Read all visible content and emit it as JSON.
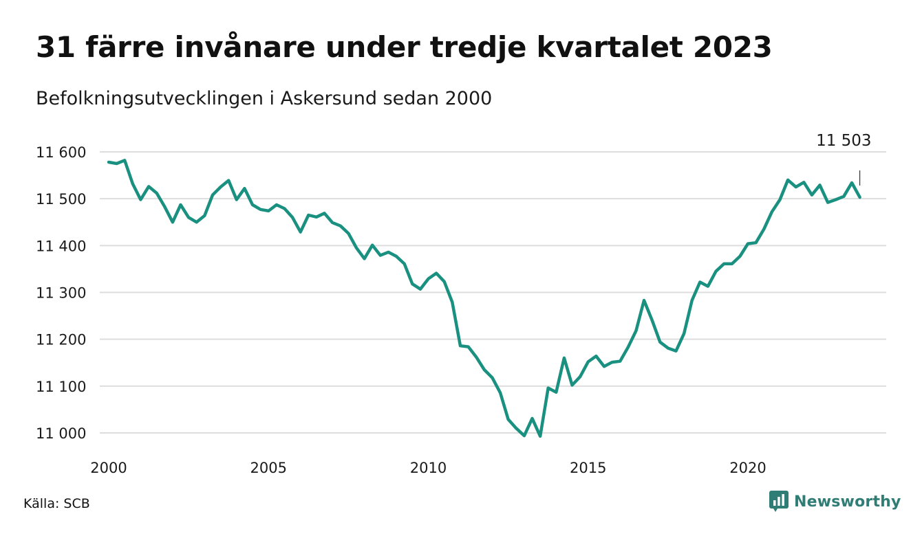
{
  "header": {
    "title": "31 färre invånare under tredje kvartalet 2023",
    "subtitle": "Befolkningsutvecklingen i Askersund sedan 2000"
  },
  "footer": {
    "source": "Källa: SCB",
    "brand": "Newsworthy"
  },
  "colors": {
    "line": "#1a9080",
    "grid": "#dddddd",
    "brand": "#2f7d74"
  },
  "chart_data": {
    "type": "line",
    "title": "31 färre invånare under tredje kvartalet 2023",
    "subtitle": "Befolkningsutvecklingen i Askersund sedan 2000",
    "xlabel": "",
    "ylabel": "",
    "xlim": [
      2000,
      2024.6
    ],
    "ylim": [
      10985,
      11600
    ],
    "y_ticks": [
      11000,
      11100,
      11200,
      11300,
      11400,
      11500,
      11600
    ],
    "y_tick_labels": [
      "11 000",
      "11 100",
      "11 200",
      "11 300",
      "11 400",
      "11 500",
      "11 600"
    ],
    "x_ticks": [
      2000,
      2005,
      2010,
      2015,
      2020
    ],
    "x_tick_labels": [
      "2000",
      "2005",
      "2010",
      "2015",
      "2020"
    ],
    "grid": "horizontal",
    "end_annotation": "11 503",
    "series": [
      {
        "values": [
          [
            2000.0,
            11578
          ],
          [
            2000.25,
            11575
          ],
          [
            2000.5,
            11582
          ],
          [
            2000.75,
            11532
          ],
          [
            2001.0,
            11498
          ],
          [
            2001.25,
            11526
          ],
          [
            2001.5,
            11512
          ],
          [
            2001.75,
            11483
          ],
          [
            2002.0,
            11450
          ],
          [
            2002.25,
            11487
          ],
          [
            2002.5,
            11460
          ],
          [
            2002.75,
            11450
          ],
          [
            2003.0,
            11464
          ],
          [
            2003.25,
            11508
          ],
          [
            2003.5,
            11525
          ],
          [
            2003.75,
            11539
          ],
          [
            2004.0,
            11498
          ],
          [
            2004.25,
            11522
          ],
          [
            2004.5,
            11487
          ],
          [
            2004.75,
            11477
          ],
          [
            2005.0,
            11474
          ],
          [
            2005.25,
            11487
          ],
          [
            2005.5,
            11479
          ],
          [
            2005.75,
            11460
          ],
          [
            2006.0,
            11429
          ],
          [
            2006.25,
            11465
          ],
          [
            2006.5,
            11461
          ],
          [
            2006.75,
            11469
          ],
          [
            2007.0,
            11449
          ],
          [
            2007.25,
            11442
          ],
          [
            2007.5,
            11426
          ],
          [
            2007.75,
            11395
          ],
          [
            2008.0,
            11372
          ],
          [
            2008.25,
            11401
          ],
          [
            2008.5,
            11379
          ],
          [
            2008.75,
            11386
          ],
          [
            2009.0,
            11377
          ],
          [
            2009.25,
            11361
          ],
          [
            2009.5,
            11318
          ],
          [
            2009.75,
            11307
          ],
          [
            2010.0,
            11329
          ],
          [
            2010.25,
            11341
          ],
          [
            2010.5,
            11323
          ],
          [
            2010.75,
            11279
          ],
          [
            2011.0,
            11186
          ],
          [
            2011.25,
            11184
          ],
          [
            2011.5,
            11162
          ],
          [
            2011.75,
            11135
          ],
          [
            2012.0,
            11118
          ],
          [
            2012.25,
            11086
          ],
          [
            2012.5,
            11029
          ],
          [
            2012.75,
            11010
          ],
          [
            2013.0,
            10994
          ],
          [
            2013.25,
            11031
          ],
          [
            2013.5,
            10993
          ],
          [
            2013.75,
            11096
          ],
          [
            2014.0,
            11087
          ],
          [
            2014.25,
            11160
          ],
          [
            2014.5,
            11102
          ],
          [
            2014.75,
            11120
          ],
          [
            2015.0,
            11152
          ],
          [
            2015.25,
            11164
          ],
          [
            2015.5,
            11142
          ],
          [
            2015.75,
            11151
          ],
          [
            2016.0,
            11153
          ],
          [
            2016.25,
            11183
          ],
          [
            2016.5,
            11218
          ],
          [
            2016.75,
            11283
          ],
          [
            2017.0,
            11241
          ],
          [
            2017.25,
            11194
          ],
          [
            2017.5,
            11181
          ],
          [
            2017.75,
            11175
          ],
          [
            2018.0,
            11212
          ],
          [
            2018.25,
            11283
          ],
          [
            2018.5,
            11322
          ],
          [
            2018.75,
            11313
          ],
          [
            2019.0,
            11345
          ],
          [
            2019.25,
            11361
          ],
          [
            2019.5,
            11361
          ],
          [
            2019.75,
            11377
          ],
          [
            2020.0,
            11404
          ],
          [
            2020.25,
            11406
          ],
          [
            2020.5,
            11435
          ],
          [
            2020.75,
            11472
          ],
          [
            2021.0,
            11498
          ],
          [
            2021.25,
            11540
          ],
          [
            2021.5,
            11525
          ],
          [
            2021.75,
            11535
          ],
          [
            2022.0,
            11508
          ],
          [
            2022.25,
            11529
          ],
          [
            2022.5,
            11492
          ],
          [
            2022.75,
            11498
          ],
          [
            2023.0,
            11505
          ],
          [
            2023.25,
            11534
          ],
          [
            2023.5,
            11503
          ]
        ]
      }
    ]
  }
}
